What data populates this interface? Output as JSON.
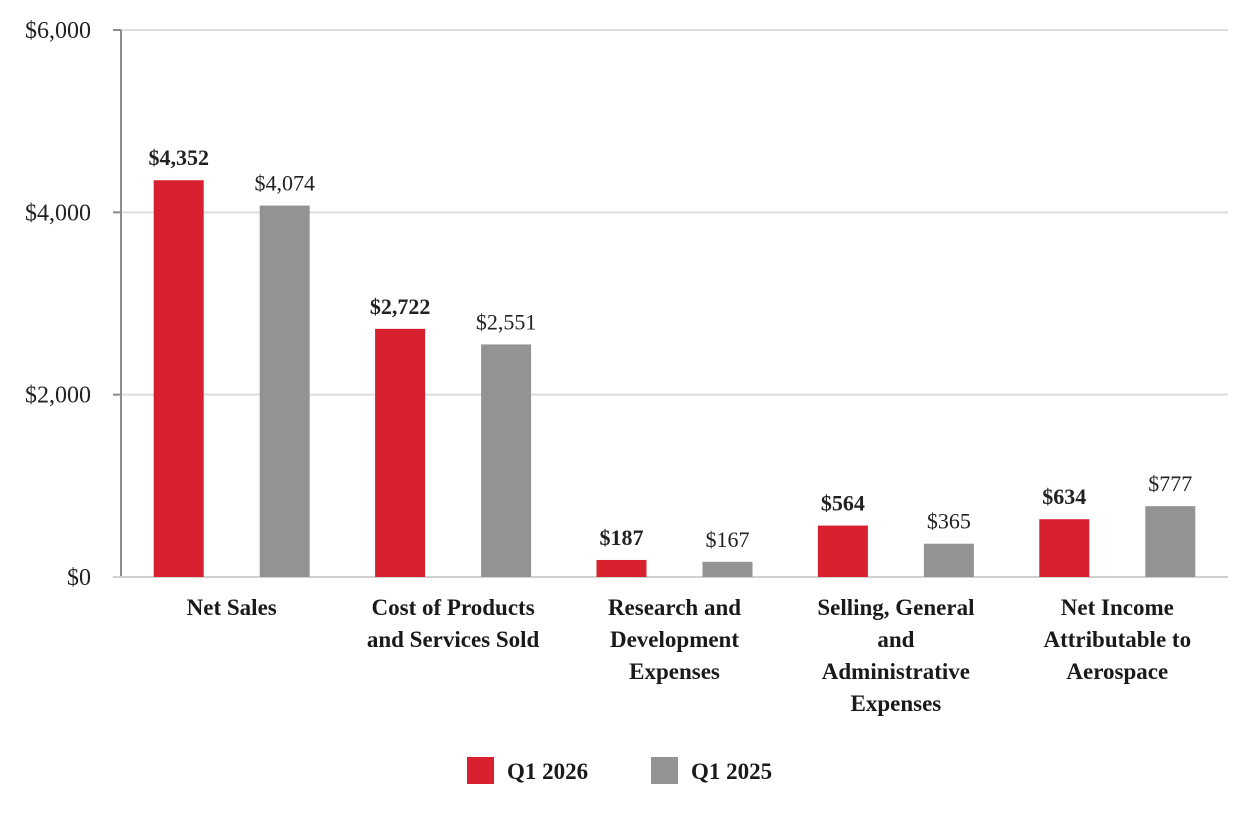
{
  "chart_data": {
    "type": "bar",
    "categories": [
      [
        "Net Sales"
      ],
      [
        "Cost of Products",
        "and Services Sold"
      ],
      [
        "Research and",
        "Development",
        "Expenses"
      ],
      [
        "Selling, General",
        "and",
        "Administrative",
        "Expenses"
      ],
      [
        "Net Income",
        "Attributable to",
        "Aerospace"
      ]
    ],
    "series": [
      {
        "name": "Q1 2026",
        "color": "#d9202e",
        "values": [
          4352,
          2722,
          187,
          564,
          634
        ],
        "labels": [
          "$4,352",
          "$2,722",
          "$187",
          "$564",
          "$634"
        ],
        "label_bold": true
      },
      {
        "name": "Q1 2025",
        "color": "#939393",
        "values": [
          4074,
          2551,
          167,
          365,
          777
        ],
        "labels": [
          "$4,074",
          "$2,551",
          "$167",
          "$365",
          "$777"
        ],
        "label_bold": false
      }
    ],
    "ylim": [
      0,
      6000
    ],
    "yticks": [
      0,
      2000,
      4000,
      6000
    ],
    "ytick_labels": [
      "$0",
      "$2,000",
      "$4,000",
      "$6,000"
    ],
    "grid": true,
    "legend_position": "bottom-center",
    "title": "",
    "xlabel": "",
    "ylabel": ""
  }
}
